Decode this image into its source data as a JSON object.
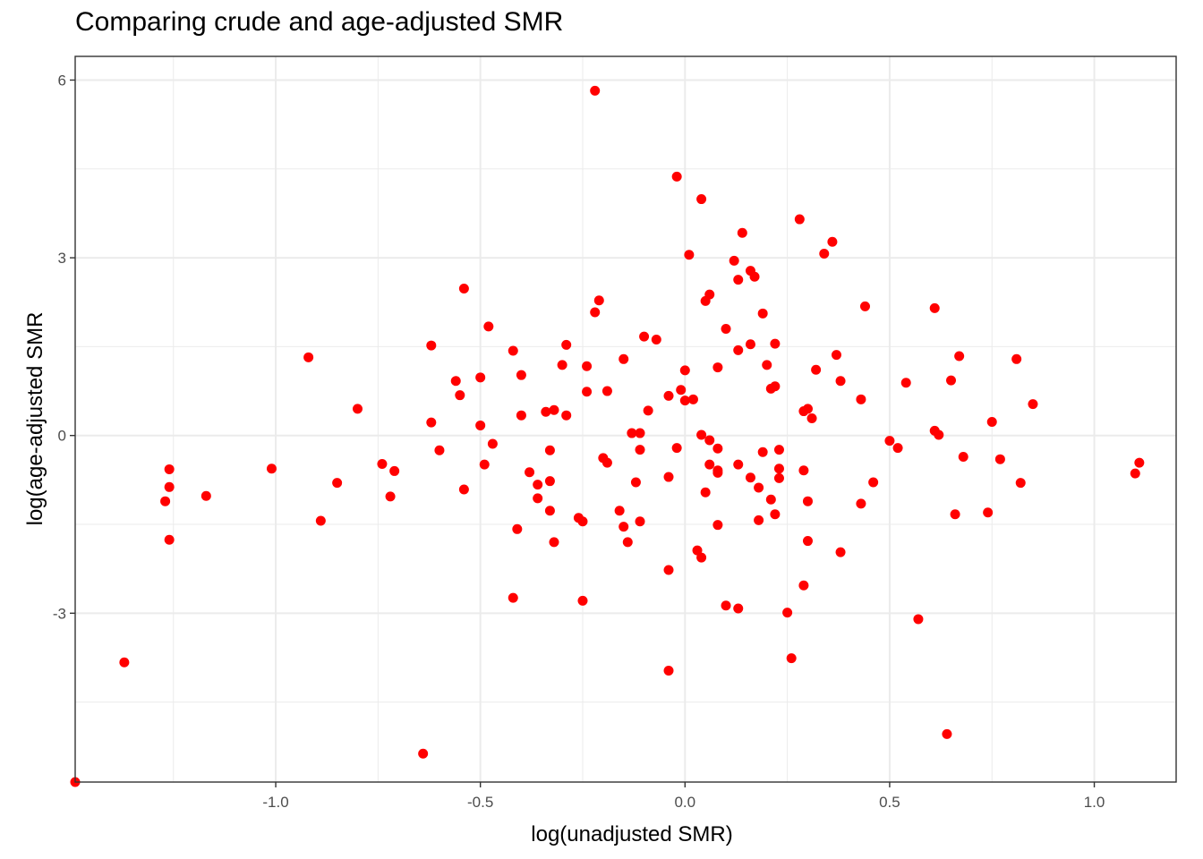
{
  "chart_data": {
    "type": "scatter",
    "title": "Comparing crude and age-adjusted SMR",
    "xlabel": "log(unadjusted SMR)",
    "ylabel": "log(age-adjusted SMR",
    "xlim": [
      -1.49,
      1.2
    ],
    "ylim": [
      -5.85,
      6.4
    ],
    "x_ticks": [
      {
        "value": -1.0,
        "label": "-1.0"
      },
      {
        "value": -0.5,
        "label": "-0.5"
      },
      {
        "value": 0.0,
        "label": "0.0"
      },
      {
        "value": 0.5,
        "label": "0.5"
      },
      {
        "value": 1.0,
        "label": "1.0"
      }
    ],
    "y_ticks": [
      {
        "value": 6,
        "label": "6"
      },
      {
        "value": 3,
        "label": "3"
      },
      {
        "value": 0,
        "label": "0"
      },
      {
        "value": -3,
        "label": "-3"
      }
    ],
    "grid": true,
    "point_color": "#ff0000",
    "points": [
      [
        -0.22,
        5.82
      ],
      [
        -0.02,
        4.37
      ],
      [
        0.04,
        3.99
      ],
      [
        0.28,
        3.65
      ],
      [
        0.36,
        3.27
      ],
      [
        0.14,
        3.42
      ],
      [
        0.34,
        3.07
      ],
      [
        0.01,
        3.05
      ],
      [
        0.12,
        2.95
      ],
      [
        0.16,
        2.78
      ],
      [
        0.17,
        2.68
      ],
      [
        0.13,
        2.63
      ],
      [
        -0.54,
        2.48
      ],
      [
        0.06,
        2.38
      ],
      [
        0.05,
        2.27
      ],
      [
        -0.21,
        2.28
      ],
      [
        -0.22,
        2.08
      ],
      [
        0.19,
        2.06
      ],
      [
        0.44,
        2.18
      ],
      [
        0.61,
        2.15
      ],
      [
        -0.48,
        1.84
      ],
      [
        0.1,
        1.8
      ],
      [
        -0.1,
        1.67
      ],
      [
        -0.07,
        1.62
      ],
      [
        -0.29,
        1.53
      ],
      [
        -0.62,
        1.52
      ],
      [
        0.16,
        1.54
      ],
      [
        0.22,
        1.55
      ],
      [
        0.13,
        1.44
      ],
      [
        -0.42,
        1.43
      ],
      [
        -0.92,
        1.32
      ],
      [
        0.37,
        1.36
      ],
      [
        0.67,
        1.34
      ],
      [
        0.81,
        1.29
      ],
      [
        -0.15,
        1.29
      ],
      [
        0.08,
        1.15
      ],
      [
        0.2,
        1.19
      ],
      [
        -0.3,
        1.19
      ],
      [
        -0.24,
        1.17
      ],
      [
        0.32,
        1.11
      ],
      [
        0.0,
        1.1
      ],
      [
        -0.4,
        1.02
      ],
      [
        -0.5,
        0.98
      ],
      [
        -0.56,
        0.92
      ],
      [
        0.38,
        0.92
      ],
      [
        0.54,
        0.89
      ],
      [
        0.65,
        0.93
      ],
      [
        0.21,
        0.79
      ],
      [
        0.22,
        0.83
      ],
      [
        -0.01,
        0.77
      ],
      [
        -0.19,
        0.75
      ],
      [
        -0.24,
        0.74
      ],
      [
        -0.55,
        0.68
      ],
      [
        -0.04,
        0.67
      ],
      [
        0.0,
        0.59
      ],
      [
        0.02,
        0.61
      ],
      [
        0.43,
        0.61
      ],
      [
        0.85,
        0.53
      ],
      [
        -0.8,
        0.45
      ],
      [
        -0.32,
        0.43
      ],
      [
        -0.09,
        0.42
      ],
      [
        0.29,
        0.41
      ],
      [
        0.3,
        0.45
      ],
      [
        -0.34,
        0.4
      ],
      [
        -0.29,
        0.34
      ],
      [
        -0.4,
        0.34
      ],
      [
        0.31,
        0.29
      ],
      [
        -0.62,
        0.22
      ],
      [
        0.75,
        0.23
      ],
      [
        -0.5,
        0.17
      ],
      [
        0.61,
        0.08
      ],
      [
        0.62,
        0.01
      ],
      [
        -0.13,
        0.04
      ],
      [
        -0.11,
        0.04
      ],
      [
        0.04,
        0.01
      ],
      [
        0.06,
        -0.08
      ],
      [
        0.5,
        -0.09
      ],
      [
        -0.47,
        -0.14
      ],
      [
        0.52,
        -0.21
      ],
      [
        -0.33,
        -0.25
      ],
      [
        -0.11,
        -0.24
      ],
      [
        -0.02,
        -0.21
      ],
      [
        0.08,
        -0.22
      ],
      [
        0.23,
        -0.24
      ],
      [
        -0.6,
        -0.25
      ],
      [
        0.19,
        -0.28
      ],
      [
        -0.2,
        -0.38
      ],
      [
        0.77,
        -0.4
      ],
      [
        0.68,
        -0.36
      ],
      [
        -0.19,
        -0.46
      ],
      [
        -0.74,
        -0.48
      ],
      [
        -0.49,
        -0.49
      ],
      [
        0.06,
        -0.49
      ],
      [
        0.13,
        -0.49
      ],
      [
        1.11,
        -0.46
      ],
      [
        -1.01,
        -0.56
      ],
      [
        -1.26,
        -0.57
      ],
      [
        -0.71,
        -0.6
      ],
      [
        0.08,
        -0.59
      ],
      [
        0.23,
        -0.56
      ],
      [
        0.29,
        -0.59
      ],
      [
        -0.38,
        -0.62
      ],
      [
        0.08,
        -0.63
      ],
      [
        1.1,
        -0.64
      ],
      [
        -0.04,
        -0.7
      ],
      [
        0.16,
        -0.71
      ],
      [
        0.23,
        -0.72
      ],
      [
        -0.33,
        -0.77
      ],
      [
        -0.12,
        -0.79
      ],
      [
        0.46,
        -0.79
      ],
      [
        0.82,
        -0.8
      ],
      [
        -0.85,
        -0.8
      ],
      [
        -0.36,
        -0.83
      ],
      [
        -1.26,
        -0.87
      ],
      [
        0.18,
        -0.88
      ],
      [
        0.05,
        -0.96
      ],
      [
        -0.54,
        -0.91
      ],
      [
        -1.17,
        -1.02
      ],
      [
        -0.72,
        -1.03
      ],
      [
        -0.36,
        -1.06
      ],
      [
        0.21,
        -1.08
      ],
      [
        0.3,
        -1.11
      ],
      [
        -1.27,
        -1.11
      ],
      [
        0.43,
        -1.15
      ],
      [
        -0.33,
        -1.27
      ],
      [
        -0.16,
        -1.27
      ],
      [
        0.74,
        -1.3
      ],
      [
        0.66,
        -1.33
      ],
      [
        0.22,
        -1.33
      ],
      [
        -0.26,
        -1.39
      ],
      [
        -0.25,
        -1.45
      ],
      [
        -0.11,
        -1.45
      ],
      [
        -0.89,
        -1.44
      ],
      [
        0.18,
        -1.43
      ],
      [
        0.08,
        -1.51
      ],
      [
        -0.15,
        -1.54
      ],
      [
        -0.41,
        -1.58
      ],
      [
        -1.26,
        -1.76
      ],
      [
        -0.32,
        -1.8
      ],
      [
        -0.14,
        -1.8
      ],
      [
        0.3,
        -1.78
      ],
      [
        0.03,
        -1.94
      ],
      [
        0.38,
        -1.97
      ],
      [
        0.04,
        -2.06
      ],
      [
        -0.04,
        -2.27
      ],
      [
        0.29,
        -2.53
      ],
      [
        -0.42,
        -2.74
      ],
      [
        -0.25,
        -2.79
      ],
      [
        0.1,
        -2.87
      ],
      [
        0.13,
        -2.92
      ],
      [
        0.25,
        -2.99
      ],
      [
        0.57,
        -3.1
      ],
      [
        -1.37,
        -3.83
      ],
      [
        0.26,
        -3.76
      ],
      [
        -0.04,
        -3.97
      ],
      [
        0.64,
        -5.04
      ],
      [
        -0.64,
        -5.37
      ],
      [
        -1.49,
        -5.85
      ]
    ]
  }
}
